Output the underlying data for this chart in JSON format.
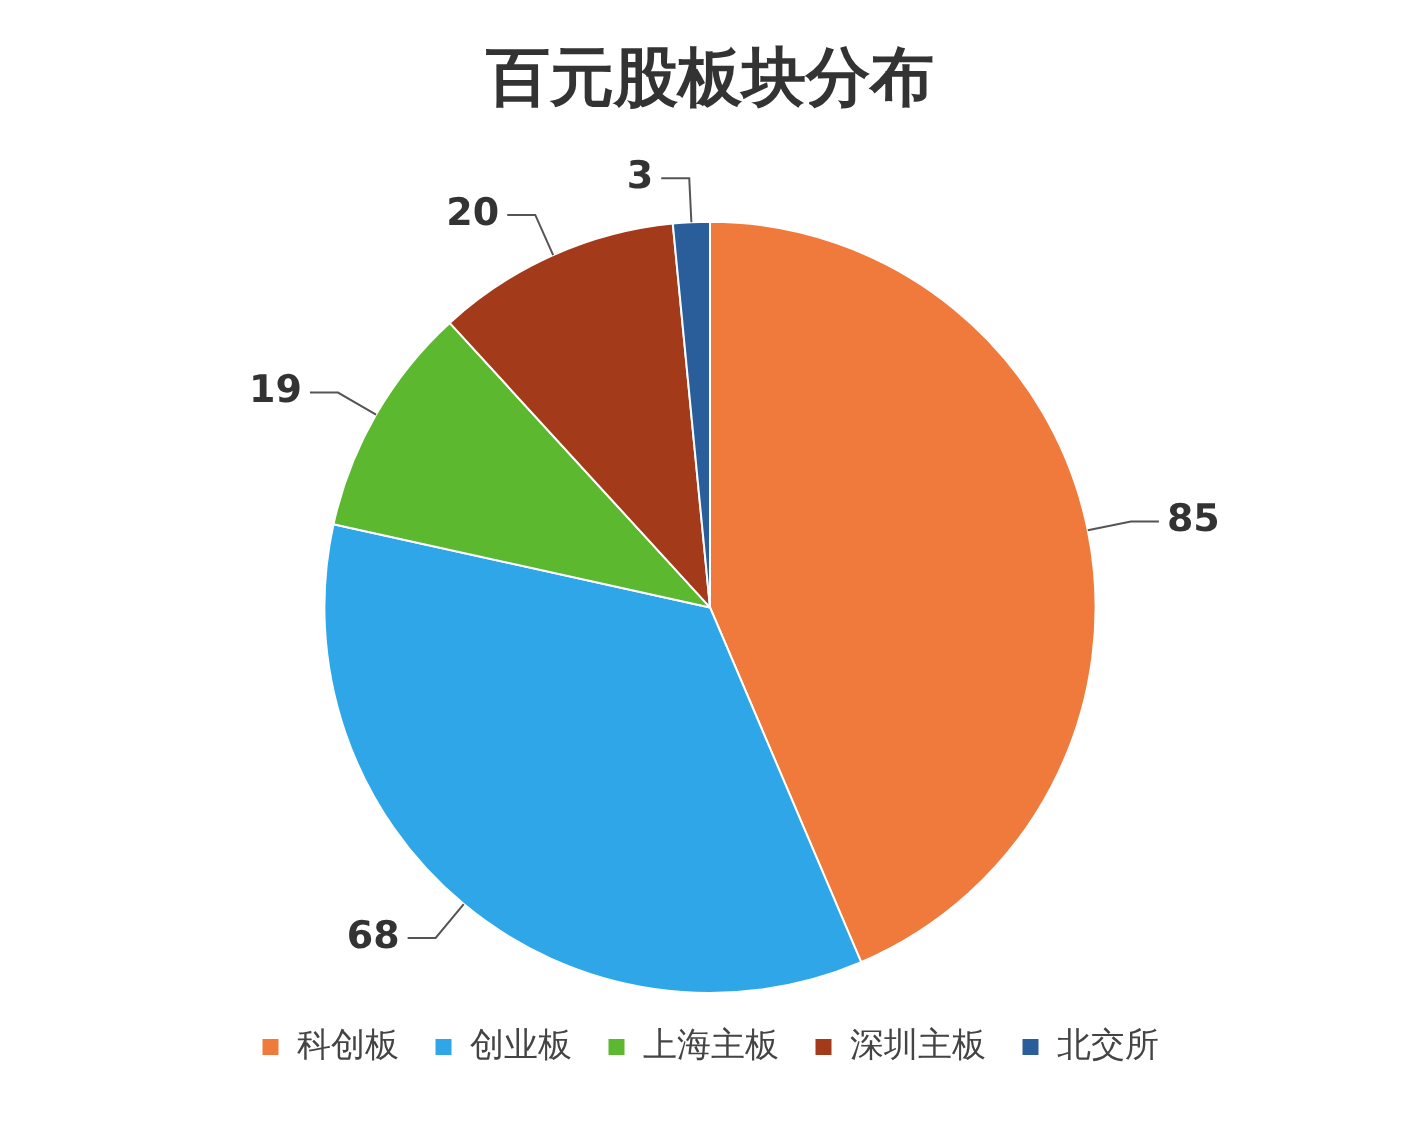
{
  "chart_data": {
    "type": "pie",
    "title": "百元股板块分布",
    "categories": [
      "科创板",
      "创业板",
      "上海主板",
      "深圳主板",
      "北交所"
    ],
    "values": [
      85,
      68,
      19,
      20,
      3
    ],
    "colors": [
      "#f07a3c",
      "#2ea6e8",
      "#5cb82e",
      "#a33a1a",
      "#2a5e9a"
    ],
    "data_labels": true,
    "legend": "bottom"
  }
}
